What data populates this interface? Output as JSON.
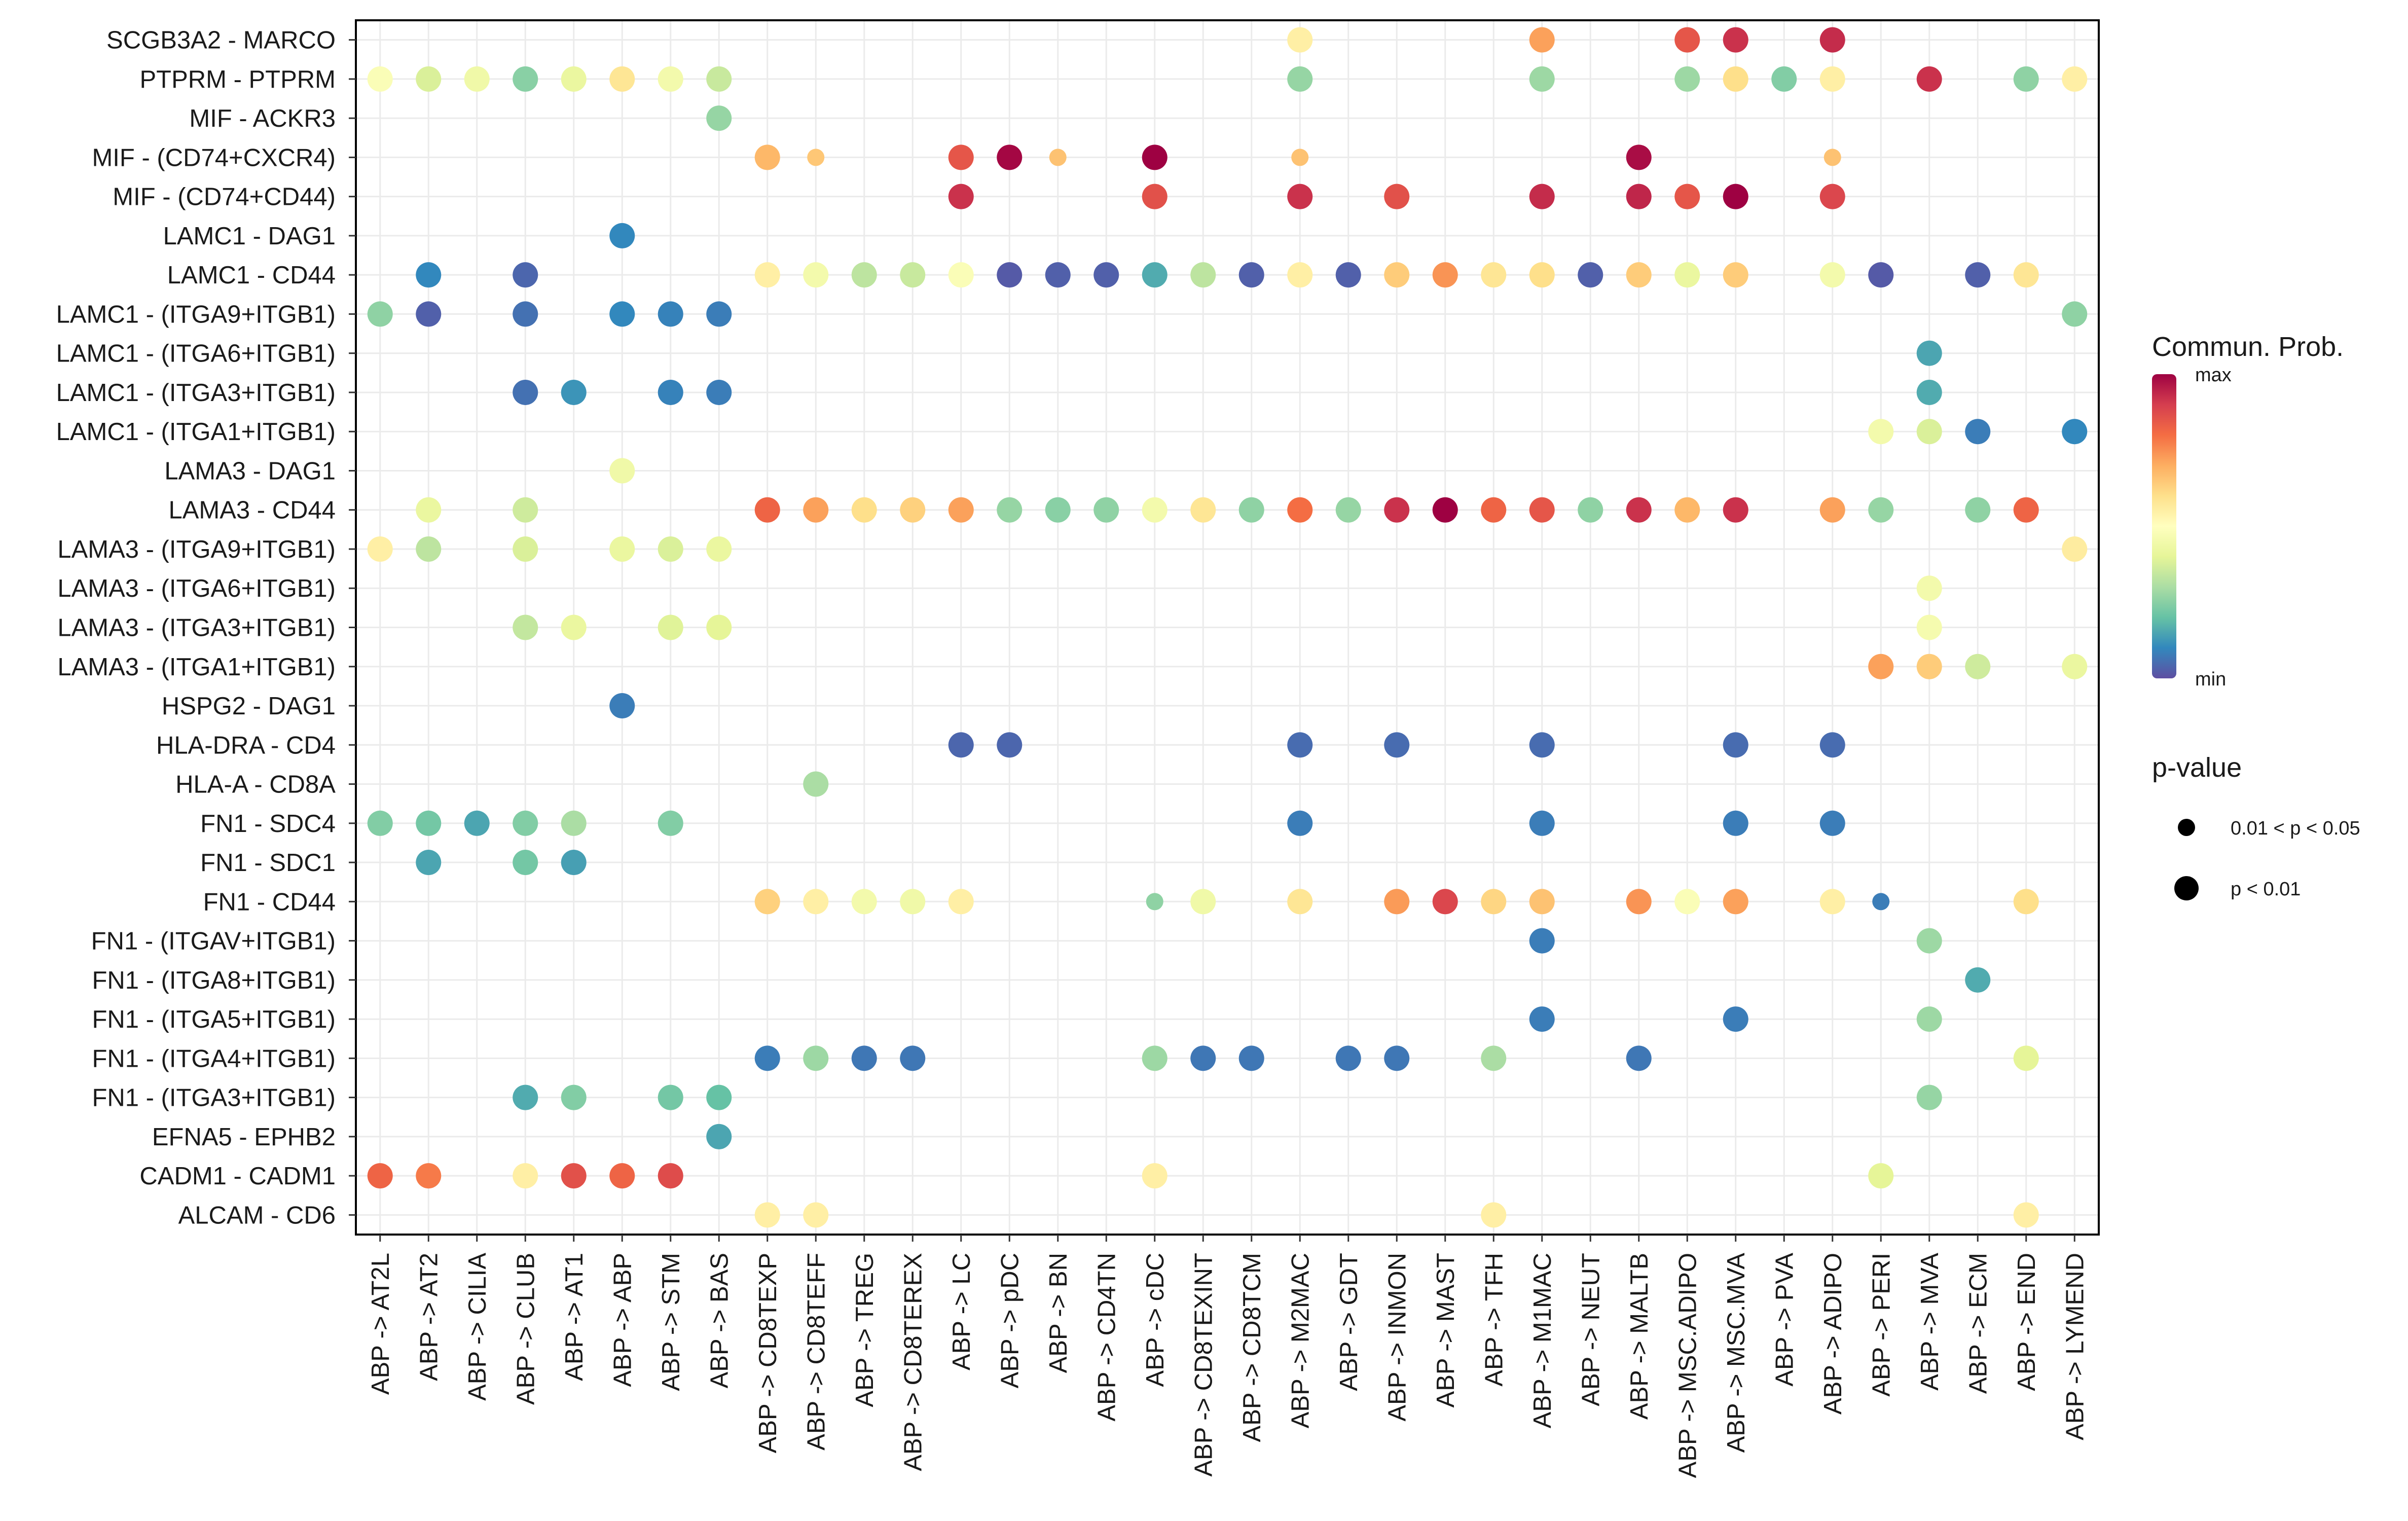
{
  "chart_data": {
    "type": "bubble",
    "title": "",
    "xlabel": "",
    "ylabel": "",
    "color_scale": {
      "name": "Spectral (reversed)",
      "min_color": "#5e4fa2",
      "max_color": "#9e0142"
    },
    "y_categories": [
      "SCGB3A2 - MARCO",
      "PTPRM - PTPRM",
      "MIF - ACKR3",
      "MIF - (CD74+CXCR4)",
      "MIF - (CD74+CD44)",
      "LAMC1 - DAG1",
      "LAMC1 - CD44",
      "LAMC1 - (ITGA9+ITGB1)",
      "LAMC1 - (ITGA6+ITGB1)",
      "LAMC1 - (ITGA3+ITGB1)",
      "LAMC1 - (ITGA1+ITGB1)",
      "LAMA3 - DAG1",
      "LAMA3 - CD44",
      "LAMA3 - (ITGA9+ITGB1)",
      "LAMA3 - (ITGA6+ITGB1)",
      "LAMA3 - (ITGA3+ITGB1)",
      "LAMA3 - (ITGA1+ITGB1)",
      "HSPG2 - DAG1",
      "HLA-DRA - CD4",
      "HLA-A - CD8A",
      "FN1 - SDC4",
      "FN1 - SDC1",
      "FN1 - CD44",
      "FN1 - (ITGAV+ITGB1)",
      "FN1 - (ITGA8+ITGB1)",
      "FN1 - (ITGA5+ITGB1)",
      "FN1 - (ITGA4+ITGB1)",
      "FN1 - (ITGA3+ITGB1)",
      "EFNA5 - EPHB2",
      "CADM1 - CADM1",
      "ALCAM - CD6"
    ],
    "x_categories": [
      "ABP -> AT2L",
      "ABP -> AT2",
      "ABP -> CILIA",
      "ABP -> CLUB",
      "ABP -> AT1",
      "ABP -> ABP",
      "ABP -> STM",
      "ABP -> BAS",
      "ABP -> CD8TEXP",
      "ABP -> CD8TEFF",
      "ABP -> TREG",
      "ABP -> CD8TEREX",
      "ABP -> LC",
      "ABP -> pDC",
      "ABP -> BN",
      "ABP -> CD4TN",
      "ABP -> cDC",
      "ABP -> CD8TEXINT",
      "ABP -> CD8TCM",
      "ABP -> M2MAC",
      "ABP -> GDT",
      "ABP -> INMON",
      "ABP -> MAST",
      "ABP -> TFH",
      "ABP -> M1MAC",
      "ABP -> NEUT",
      "ABP -> MALTB",
      "ABP -> MSC.ADIPO",
      "ABP -> MSC.MVA",
      "ABP -> PVA",
      "ABP -> ADIPO",
      "ABP -> PERI",
      "ABP -> MVA",
      "ABP -> ECM",
      "ABP -> END",
      "ABP -> LYMEND"
    ],
    "points_note": "each point: [x_index, y_index, communication_probability_normalized_0_to_1, p_value_class (1 = p<0.01, 0 = 0.01<p<0.05)]",
    "points": [
      [
        19,
        0,
        0.55,
        1
      ],
      [
        24,
        0,
        0.72,
        1
      ],
      [
        27,
        0,
        0.85,
        1
      ],
      [
        28,
        0,
        0.92,
        1
      ],
      [
        30,
        0,
        0.93,
        1
      ],
      [
        0,
        1,
        0.48,
        1
      ],
      [
        1,
        1,
        0.38,
        1
      ],
      [
        2,
        1,
        0.44,
        1
      ],
      [
        3,
        1,
        0.25,
        1
      ],
      [
        4,
        1,
        0.42,
        1
      ],
      [
        5,
        1,
        0.58,
        1
      ],
      [
        6,
        1,
        0.45,
        1
      ],
      [
        7,
        1,
        0.35,
        1
      ],
      [
        19,
        1,
        0.27,
        1
      ],
      [
        24,
        1,
        0.28,
        1
      ],
      [
        27,
        1,
        0.28,
        1
      ],
      [
        28,
        1,
        0.6,
        1
      ],
      [
        29,
        1,
        0.24,
        1
      ],
      [
        30,
        1,
        0.55,
        1
      ],
      [
        32,
        1,
        0.92,
        1
      ],
      [
        34,
        1,
        0.26,
        1
      ],
      [
        35,
        1,
        0.55,
        1
      ],
      [
        7,
        2,
        0.27,
        1
      ],
      [
        8,
        3,
        0.68,
        1
      ],
      [
        9,
        3,
        0.65,
        0
      ],
      [
        12,
        3,
        0.85,
        1
      ],
      [
        13,
        3,
        0.99,
        1
      ],
      [
        14,
        3,
        0.66,
        0
      ],
      [
        16,
        3,
        1.0,
        1
      ],
      [
        19,
        3,
        0.66,
        0
      ],
      [
        26,
        3,
        0.98,
        1
      ],
      [
        30,
        3,
        0.66,
        0
      ],
      [
        12,
        4,
        0.92,
        1
      ],
      [
        16,
        4,
        0.86,
        1
      ],
      [
        19,
        4,
        0.92,
        1
      ],
      [
        21,
        4,
        0.86,
        1
      ],
      [
        24,
        4,
        0.93,
        1
      ],
      [
        26,
        4,
        0.94,
        1
      ],
      [
        27,
        4,
        0.85,
        1
      ],
      [
        28,
        4,
        1.0,
        1
      ],
      [
        30,
        4,
        0.88,
        1
      ],
      [
        5,
        5,
        0.1,
        1
      ],
      [
        1,
        6,
        0.1,
        1
      ],
      [
        3,
        6,
        0.04,
        1
      ],
      [
        8,
        6,
        0.55,
        1
      ],
      [
        9,
        6,
        0.45,
        1
      ],
      [
        10,
        6,
        0.33,
        1
      ],
      [
        11,
        6,
        0.35,
        1
      ],
      [
        12,
        6,
        0.48,
        1
      ],
      [
        13,
        6,
        0.02,
        1
      ],
      [
        14,
        6,
        0.03,
        1
      ],
      [
        15,
        6,
        0.03,
        1
      ],
      [
        16,
        6,
        0.16,
        1
      ],
      [
        17,
        6,
        0.33,
        1
      ],
      [
        18,
        6,
        0.03,
        1
      ],
      [
        19,
        6,
        0.55,
        1
      ],
      [
        20,
        6,
        0.03,
        1
      ],
      [
        21,
        6,
        0.64,
        1
      ],
      [
        22,
        6,
        0.74,
        1
      ],
      [
        23,
        6,
        0.58,
        1
      ],
      [
        24,
        6,
        0.6,
        1
      ],
      [
        25,
        6,
        0.03,
        1
      ],
      [
        26,
        6,
        0.64,
        1
      ],
      [
        27,
        6,
        0.42,
        1
      ],
      [
        28,
        6,
        0.64,
        1
      ],
      [
        30,
        6,
        0.45,
        1
      ],
      [
        31,
        6,
        0.02,
        1
      ],
      [
        33,
        6,
        0.03,
        1
      ],
      [
        34,
        6,
        0.58,
        1
      ],
      [
        0,
        7,
        0.26,
        1
      ],
      [
        1,
        7,
        0.03,
        1
      ],
      [
        3,
        7,
        0.06,
        1
      ],
      [
        5,
        7,
        0.1,
        1
      ],
      [
        6,
        7,
        0.09,
        1
      ],
      [
        7,
        7,
        0.08,
        1
      ],
      [
        35,
        7,
        0.26,
        1
      ],
      [
        32,
        8,
        0.15,
        1
      ],
      [
        3,
        9,
        0.06,
        1
      ],
      [
        4,
        9,
        0.12,
        1
      ],
      [
        6,
        9,
        0.09,
        1
      ],
      [
        7,
        9,
        0.08,
        1
      ],
      [
        32,
        9,
        0.16,
        1
      ],
      [
        31,
        10,
        0.45,
        1
      ],
      [
        32,
        10,
        0.38,
        1
      ],
      [
        33,
        10,
        0.08,
        1
      ],
      [
        35,
        10,
        0.1,
        1
      ],
      [
        5,
        11,
        0.44,
        1
      ],
      [
        1,
        12,
        0.42,
        1
      ],
      [
        3,
        12,
        0.36,
        1
      ],
      [
        8,
        12,
        0.82,
        1
      ],
      [
        9,
        12,
        0.72,
        1
      ],
      [
        10,
        12,
        0.6,
        1
      ],
      [
        11,
        12,
        0.63,
        1
      ],
      [
        12,
        12,
        0.72,
        1
      ],
      [
        13,
        12,
        0.27,
        1
      ],
      [
        14,
        12,
        0.25,
        1
      ],
      [
        15,
        12,
        0.26,
        1
      ],
      [
        16,
        12,
        0.45,
        1
      ],
      [
        17,
        12,
        0.58,
        1
      ],
      [
        18,
        12,
        0.26,
        1
      ],
      [
        19,
        12,
        0.8,
        1
      ],
      [
        20,
        12,
        0.27,
        1
      ],
      [
        21,
        12,
        0.92,
        1
      ],
      [
        22,
        12,
        1.0,
        1
      ],
      [
        23,
        12,
        0.82,
        1
      ],
      [
        24,
        12,
        0.85,
        1
      ],
      [
        25,
        12,
        0.26,
        1
      ],
      [
        26,
        12,
        0.92,
        1
      ],
      [
        27,
        12,
        0.68,
        1
      ],
      [
        28,
        12,
        0.92,
        1
      ],
      [
        30,
        12,
        0.72,
        1
      ],
      [
        31,
        12,
        0.27,
        1
      ],
      [
        33,
        12,
        0.26,
        1
      ],
      [
        34,
        12,
        0.82,
        1
      ],
      [
        0,
        13,
        0.55,
        1
      ],
      [
        1,
        13,
        0.33,
        1
      ],
      [
        3,
        13,
        0.38,
        1
      ],
      [
        5,
        13,
        0.42,
        1
      ],
      [
        6,
        13,
        0.38,
        1
      ],
      [
        7,
        13,
        0.42,
        1
      ],
      [
        35,
        13,
        0.56,
        1
      ],
      [
        32,
        14,
        0.45,
        1
      ],
      [
        3,
        15,
        0.34,
        1
      ],
      [
        4,
        15,
        0.42,
        1
      ],
      [
        6,
        15,
        0.39,
        1
      ],
      [
        7,
        15,
        0.4,
        1
      ],
      [
        32,
        15,
        0.46,
        1
      ],
      [
        31,
        16,
        0.72,
        1
      ],
      [
        32,
        16,
        0.64,
        1
      ],
      [
        33,
        16,
        0.36,
        1
      ],
      [
        35,
        16,
        0.42,
        1
      ],
      [
        5,
        17,
        0.08,
        1
      ],
      [
        12,
        18,
        0.04,
        1
      ],
      [
        13,
        18,
        0.04,
        1
      ],
      [
        19,
        18,
        0.05,
        1
      ],
      [
        21,
        18,
        0.05,
        1
      ],
      [
        24,
        18,
        0.05,
        1
      ],
      [
        28,
        18,
        0.05,
        1
      ],
      [
        30,
        18,
        0.05,
        1
      ],
      [
        9,
        19,
        0.3,
        1
      ],
      [
        0,
        20,
        0.24,
        1
      ],
      [
        1,
        20,
        0.22,
        1
      ],
      [
        2,
        20,
        0.15,
        1
      ],
      [
        3,
        20,
        0.24,
        1
      ],
      [
        4,
        20,
        0.3,
        1
      ],
      [
        6,
        20,
        0.24,
        1
      ],
      [
        19,
        20,
        0.08,
        1
      ],
      [
        24,
        20,
        0.08,
        1
      ],
      [
        28,
        20,
        0.08,
        1
      ],
      [
        30,
        20,
        0.08,
        1
      ],
      [
        1,
        21,
        0.15,
        1
      ],
      [
        3,
        21,
        0.22,
        1
      ],
      [
        4,
        21,
        0.14,
        1
      ],
      [
        8,
        22,
        0.63,
        1
      ],
      [
        9,
        22,
        0.55,
        1
      ],
      [
        10,
        22,
        0.45,
        1
      ],
      [
        11,
        22,
        0.44,
        1
      ],
      [
        12,
        22,
        0.55,
        1
      ],
      [
        16,
        22,
        0.26,
        0
      ],
      [
        17,
        22,
        0.44,
        1
      ],
      [
        19,
        22,
        0.58,
        1
      ],
      [
        21,
        22,
        0.73,
        1
      ],
      [
        22,
        22,
        0.88,
        1
      ],
      [
        23,
        22,
        0.62,
        1
      ],
      [
        24,
        22,
        0.66,
        1
      ],
      [
        26,
        22,
        0.74,
        1
      ],
      [
        27,
        22,
        0.48,
        1
      ],
      [
        28,
        22,
        0.72,
        1
      ],
      [
        30,
        22,
        0.55,
        1
      ],
      [
        31,
        22,
        0.08,
        0
      ],
      [
        34,
        22,
        0.6,
        1
      ],
      [
        24,
        23,
        0.08,
        1
      ],
      [
        32,
        23,
        0.28,
        1
      ],
      [
        33,
        24,
        0.16,
        1
      ],
      [
        24,
        25,
        0.08,
        1
      ],
      [
        28,
        25,
        0.08,
        1
      ],
      [
        32,
        25,
        0.28,
        1
      ],
      [
        8,
        26,
        0.08,
        1
      ],
      [
        9,
        26,
        0.28,
        1
      ],
      [
        10,
        26,
        0.07,
        1
      ],
      [
        11,
        26,
        0.07,
        1
      ],
      [
        16,
        26,
        0.28,
        1
      ],
      [
        17,
        26,
        0.07,
        1
      ],
      [
        18,
        26,
        0.07,
        1
      ],
      [
        20,
        26,
        0.07,
        1
      ],
      [
        21,
        26,
        0.07,
        1
      ],
      [
        23,
        26,
        0.3,
        1
      ],
      [
        26,
        26,
        0.07,
        1
      ],
      [
        34,
        26,
        0.4,
        1
      ],
      [
        3,
        27,
        0.16,
        1
      ],
      [
        4,
        27,
        0.24,
        1
      ],
      [
        6,
        27,
        0.22,
        1
      ],
      [
        7,
        27,
        0.2,
        1
      ],
      [
        32,
        27,
        0.27,
        1
      ],
      [
        7,
        28,
        0.15,
        1
      ],
      [
        0,
        29,
        0.82,
        1
      ],
      [
        1,
        29,
        0.78,
        1
      ],
      [
        3,
        29,
        0.55,
        1
      ],
      [
        4,
        29,
        0.86,
        1
      ],
      [
        5,
        29,
        0.82,
        1
      ],
      [
        6,
        29,
        0.87,
        1
      ],
      [
        16,
        29,
        0.55,
        1
      ],
      [
        31,
        29,
        0.4,
        1
      ],
      [
        8,
        30,
        0.55,
        1
      ],
      [
        9,
        30,
        0.55,
        1
      ],
      [
        23,
        30,
        0.55,
        1
      ],
      [
        34,
        30,
        0.55,
        1
      ]
    ],
    "legend": {
      "color_title": "Commun. Prob.",
      "color_max_label": "max",
      "color_min_label": "min",
      "size_title": "p-value",
      "size_labels": [
        "0.01 < p < 0.05",
        "p < 0.01"
      ]
    }
  }
}
